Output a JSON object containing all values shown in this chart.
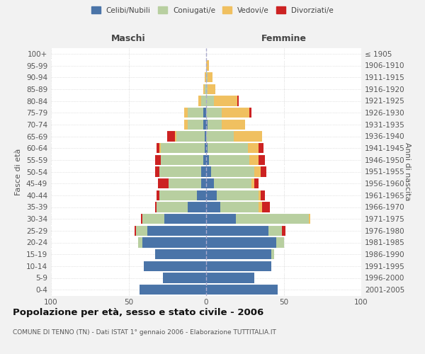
{
  "age_groups": [
    "0-4",
    "5-9",
    "10-14",
    "15-19",
    "20-24",
    "25-29",
    "30-34",
    "35-39",
    "40-44",
    "45-49",
    "50-54",
    "55-59",
    "60-64",
    "65-69",
    "70-74",
    "75-79",
    "80-84",
    "85-89",
    "90-94",
    "95-99",
    "100+"
  ],
  "birth_years": [
    "2001-2005",
    "1996-2000",
    "1991-1995",
    "1986-1990",
    "1981-1985",
    "1976-1980",
    "1971-1975",
    "1966-1970",
    "1961-1965",
    "1956-1960",
    "1951-1955",
    "1946-1950",
    "1941-1945",
    "1936-1940",
    "1931-1935",
    "1926-1930",
    "1921-1925",
    "1916-1920",
    "1911-1915",
    "1906-1910",
    "≤ 1905"
  ],
  "maschi": {
    "celibi": [
      43,
      28,
      40,
      33,
      41,
      38,
      27,
      12,
      6,
      3,
      3,
      2,
      1,
      1,
      2,
      2,
      0,
      0,
      0,
      0,
      0
    ],
    "coniugati": [
      0,
      0,
      0,
      0,
      3,
      7,
      14,
      20,
      24,
      21,
      27,
      27,
      28,
      18,
      10,
      10,
      3,
      1,
      0,
      0,
      0
    ],
    "vedovi": [
      0,
      0,
      0,
      0,
      0,
      0,
      0,
      0,
      0,
      0,
      0,
      0,
      1,
      1,
      2,
      2,
      2,
      1,
      1,
      0,
      0
    ],
    "divorziati": [
      0,
      0,
      0,
      0,
      0,
      1,
      1,
      1,
      2,
      7,
      3,
      4,
      2,
      5,
      0,
      0,
      0,
      0,
      0,
      0,
      0
    ]
  },
  "femmine": {
    "nubili": [
      46,
      31,
      42,
      42,
      45,
      40,
      19,
      9,
      7,
      5,
      3,
      2,
      1,
      0,
      1,
      0,
      0,
      0,
      0,
      0,
      0
    ],
    "coniugate": [
      0,
      0,
      0,
      2,
      5,
      9,
      47,
      25,
      27,
      24,
      28,
      26,
      26,
      18,
      9,
      10,
      5,
      1,
      1,
      0,
      0
    ],
    "vedove": [
      0,
      0,
      0,
      0,
      0,
      0,
      1,
      2,
      1,
      2,
      4,
      6,
      7,
      18,
      15,
      18,
      15,
      5,
      3,
      2,
      0
    ],
    "divorziate": [
      0,
      0,
      0,
      0,
      0,
      2,
      0,
      5,
      3,
      3,
      4,
      4,
      3,
      0,
      0,
      1,
      1,
      0,
      0,
      0,
      0
    ]
  },
  "colors": {
    "celibi": "#4a74a8",
    "coniugati": "#b8cfa0",
    "vedovi": "#f0c060",
    "divorziati": "#cc2222"
  },
  "xlim": 100,
  "title": "Popolazione per età, sesso e stato civile - 2006",
  "subtitle": "COMUNE DI TENNO (TN) - Dati ISTAT 1° gennaio 2006 - Elaborazione TUTTITALIA.IT",
  "ylabel_left": "Fasce di età",
  "ylabel_right": "Anni di nascita",
  "xlabel_maschi": "Maschi",
  "xlabel_femmine": "Femmine",
  "bg_color": "#f2f2f2",
  "plot_bg_color": "#ffffff"
}
